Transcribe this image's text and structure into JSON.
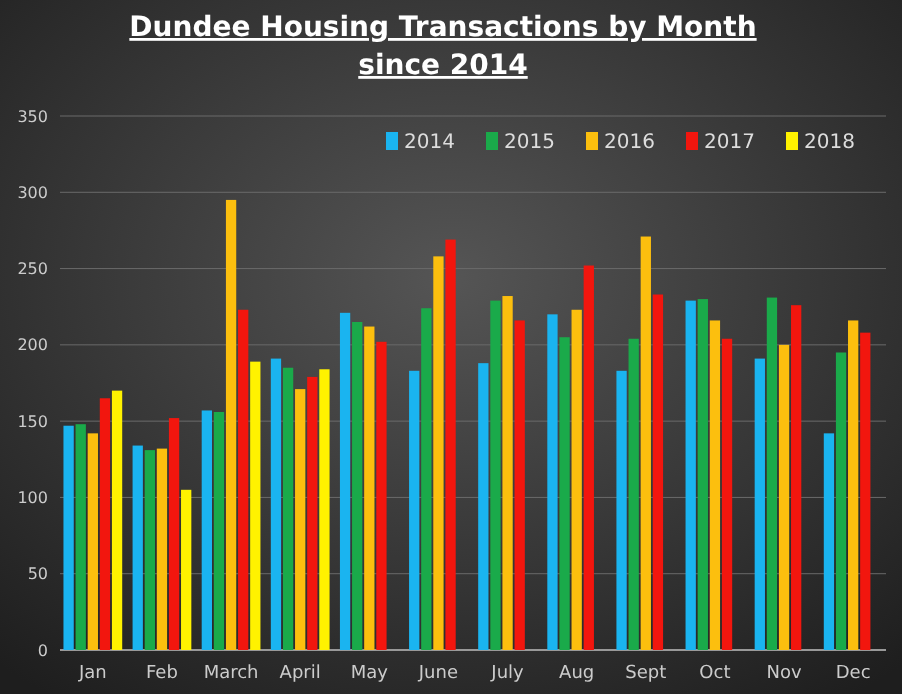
{
  "chart_data": {
    "type": "bar",
    "title": "Dundee Housing Transactions by Month",
    "subtitle": "since 2014",
    "categories": [
      "Jan",
      "Feb",
      "March",
      "April",
      "May",
      "June",
      "July",
      "Aug",
      "Sept",
      "Oct",
      "Nov",
      "Dec"
    ],
    "series": [
      {
        "name": "2014",
        "color": "#1ab4f0",
        "values": [
          147,
          134,
          157,
          191,
          221,
          183,
          188,
          220,
          183,
          229,
          191,
          142
        ]
      },
      {
        "name": "2015",
        "color": "#1aaa4a",
        "values": [
          148,
          131,
          156,
          185,
          215,
          224,
          229,
          205,
          204,
          230,
          231,
          195
        ]
      },
      {
        "name": "2016",
        "color": "#fcbf0e",
        "values": [
          142,
          132,
          295,
          171,
          212,
          258,
          232,
          223,
          271,
          216,
          200,
          216
        ]
      },
      {
        "name": "2017",
        "color": "#f2160e",
        "values": [
          165,
          152,
          223,
          179,
          202,
          269,
          216,
          252,
          233,
          204,
          226,
          208
        ]
      },
      {
        "name": "2018",
        "color": "#fff200",
        "values": [
          170,
          105,
          189,
          184,
          null,
          null,
          null,
          null,
          null,
          null,
          null,
          null
        ]
      }
    ],
    "ylim": [
      0,
      350
    ],
    "yticks": [
      0,
      50,
      100,
      150,
      200,
      250,
      300,
      350
    ],
    "grid": "y",
    "legend": "top right"
  }
}
